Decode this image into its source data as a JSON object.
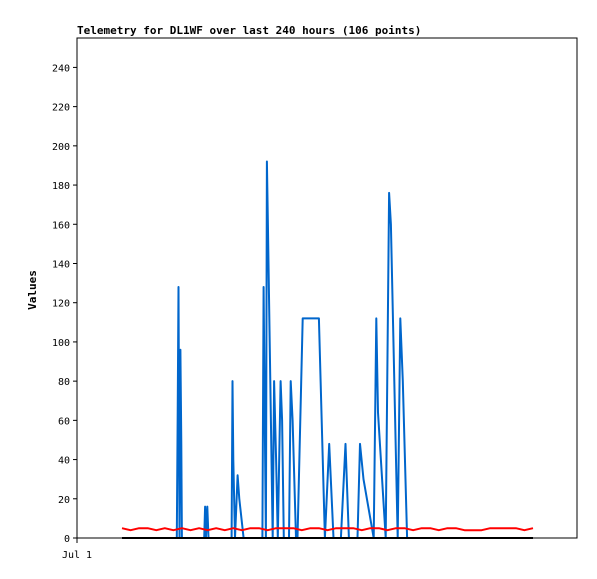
{
  "chart_data": {
    "type": "line",
    "title": "Telemetry for DL1WF over last 240 hours (106 points)",
    "ylabel": "Values",
    "xlabel": "",
    "ylim": [
      0,
      255
    ],
    "y_ticks": [
      0,
      20,
      40,
      60,
      80,
      100,
      120,
      140,
      160,
      180,
      200,
      220,
      240
    ],
    "x_tick_labels": [
      {
        "label": "Jul 1",
        "x": 0
      }
    ],
    "xlim": [
      0,
      240
    ],
    "grid": false,
    "legend": "none",
    "series": [
      {
        "color": "#0066cc",
        "x": [
          32.0,
          32.5,
          33.0,
          33.6,
          34.1,
          34.6,
          35.0,
          35.3,
          48.0,
          48.5,
          49.0,
          49.8,
          50.5,
          64.0,
          64.5,
          65.0,
          66.0,
          67.5,
          68.5,
          71.0,
          82.0,
          82.7,
          83.3,
          84.0,
          84.6,
          85.2,
          88.0,
          88.8,
          90.0,
          91.0,
          92.6,
          93.5,
          94.5,
          97.5,
          98.5,
          99.6,
          101.6,
          102.5,
          105.5,
          110.5,
          115.0,
          118.5,
          121.0,
          123.5,
          127.8,
          130.5,
          132.5,
          137.5,
          139.0,
          141.0,
          147.0,
          148.5,
          149.5,
          154.0,
          156.0,
          157.0,
          161.0,
          162.5,
          164.0,
          166.5,
          168.0,
          170.0,
          177.5,
          178.0,
          180.0,
          183.0,
          185.0,
          190.0
        ],
        "y": [
          0,
          64,
          128,
          0,
          96,
          48,
          0,
          0,
          0,
          16,
          0,
          16,
          0,
          0,
          80,
          40,
          0,
          32,
          20,
          0,
          0,
          128,
          64,
          0,
          192,
          160,
          0,
          80,
          40,
          0,
          80,
          60,
          0,
          0,
          80,
          60,
          0,
          0,
          112,
          112,
          112,
          0,
          48,
          0,
          0,
          48,
          0,
          0,
          48,
          30,
          0,
          112,
          64,
          0,
          176,
          160,
          0,
          112,
          80,
          0,
          0,
          0,
          0,
          0,
          0,
          0,
          0,
          0
        ]
      },
      {
        "color": "#ff0000",
        "x": [
          0,
          5,
          10,
          15,
          20,
          25,
          30,
          35,
          40,
          45,
          50,
          55,
          60,
          65,
          70,
          75,
          80,
          85,
          90,
          95,
          100,
          105,
          110,
          115,
          120,
          125,
          130,
          135,
          140,
          145,
          150,
          155,
          160,
          165,
          170,
          175,
          180,
          185,
          190,
          195,
          200,
          205,
          210,
          215,
          220,
          225,
          230,
          235,
          240
        ],
        "y": [
          5,
          4,
          5,
          5,
          4,
          5,
          4,
          5,
          4,
          5,
          4,
          5,
          4,
          5,
          4,
          5,
          5,
          4,
          5,
          5,
          5,
          4,
          5,
          5,
          4,
          5,
          5,
          5,
          4,
          5,
          5,
          4,
          5,
          5,
          4,
          5,
          5,
          4,
          5,
          5,
          4,
          4,
          4,
          5,
          5,
          5,
          5,
          4,
          5
        ]
      },
      {
        "color": "#000000",
        "x": [
          0,
          240
        ],
        "y": [
          0,
          0
        ]
      }
    ]
  }
}
